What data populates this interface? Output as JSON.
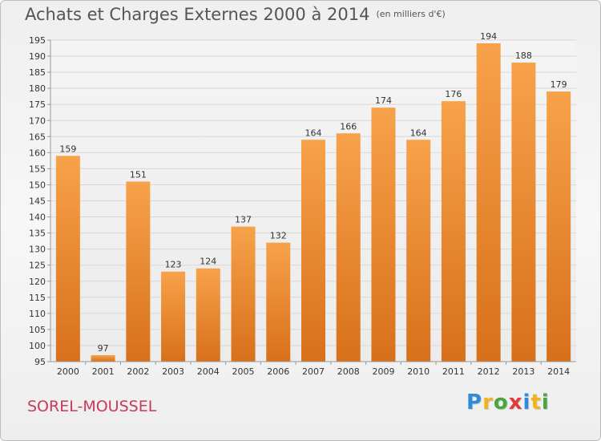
{
  "title": "Achats et Charges Externes 2000 à 2014",
  "unit": "(en milliers d'€)",
  "commune": "SOREL-MOUSSEL",
  "logo": {
    "text": "Proxiti",
    "letters": [
      "P",
      "r",
      "o",
      "x",
      "i",
      "t",
      "i"
    ],
    "colors": [
      "#2e8bd8",
      "#f0b31e",
      "#4aa53c",
      "#e23a3a",
      "#2e8bd8",
      "#f0b31e",
      "#4aa53c"
    ]
  },
  "colors": {
    "bar_light": "#f7a24a",
    "bar_dark": "#d8701a",
    "grid": "#d8d8d8",
    "axis_text": "#333333"
  },
  "chart_data": {
    "type": "bar",
    "title": "Achats et Charges Externes 2000 à 2014",
    "subtitle": "(en milliers d'€)",
    "categories": [
      "2000",
      "2001",
      "2002",
      "2003",
      "2004",
      "2005",
      "2006",
      "2007",
      "2008",
      "2009",
      "2010",
      "2011",
      "2012",
      "2013",
      "2014"
    ],
    "values": [
      159,
      97,
      151,
      123,
      124,
      137,
      132,
      164,
      166,
      174,
      164,
      176,
      194,
      188,
      179
    ],
    "ylim": [
      95,
      195
    ],
    "yticks": [
      95,
      100,
      105,
      110,
      115,
      120,
      125,
      130,
      135,
      140,
      145,
      150,
      155,
      160,
      165,
      170,
      175,
      180,
      185,
      190,
      195
    ],
    "grid": true,
    "data_labels": true
  }
}
